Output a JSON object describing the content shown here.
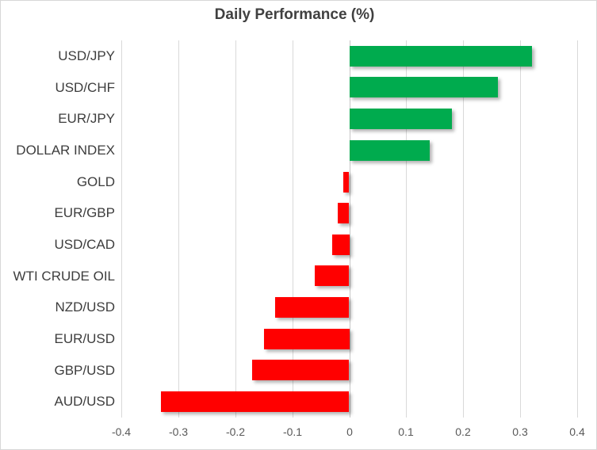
{
  "chart": {
    "title": "Daily Performance (%)",
    "colors": {
      "positive_bar": "#00ab4e",
      "negative_bar": "#ff0000",
      "gridline": "#d9d9d9",
      "zero_axis": "#c6c6c6",
      "title_text": "#404040",
      "category_text": "#3d3d3d",
      "tick_text": "#595959",
      "chart_border": "#d7d7d7",
      "background": "#ffffff"
    }
  },
  "chart_data": {
    "type": "bar",
    "orientation": "horizontal",
    "title": "Daily Performance (%)",
    "xlabel": "",
    "ylabel": "",
    "categories": [
      "USD/JPY",
      "USD/CHF",
      "EUR/JPY",
      "DOLLAR INDEX",
      "GOLD",
      "EUR/GBP",
      "USD/CAD",
      "WTI CRUDE OIL",
      "NZD/USD",
      "EUR/USD",
      "GBP/USD",
      "AUD/USD"
    ],
    "values": [
      0.32,
      0.26,
      0.18,
      0.14,
      -0.01,
      -0.02,
      -0.03,
      -0.06,
      -0.13,
      -0.15,
      -0.17,
      -0.33
    ],
    "xlim": [
      -0.4,
      0.4
    ],
    "xticks": [
      -0.4,
      -0.3,
      -0.2,
      -0.1,
      0,
      0.1,
      0.2,
      0.3,
      0.4
    ],
    "xtick_labels": [
      "-0.4",
      "-0.3",
      "-0.2",
      "-0.1",
      "0",
      "0.1",
      "0.2",
      "0.3",
      "0.4"
    ],
    "grid": "vertical-only",
    "legend": "none",
    "color_rule": "green-if-positive-red-if-negative"
  }
}
